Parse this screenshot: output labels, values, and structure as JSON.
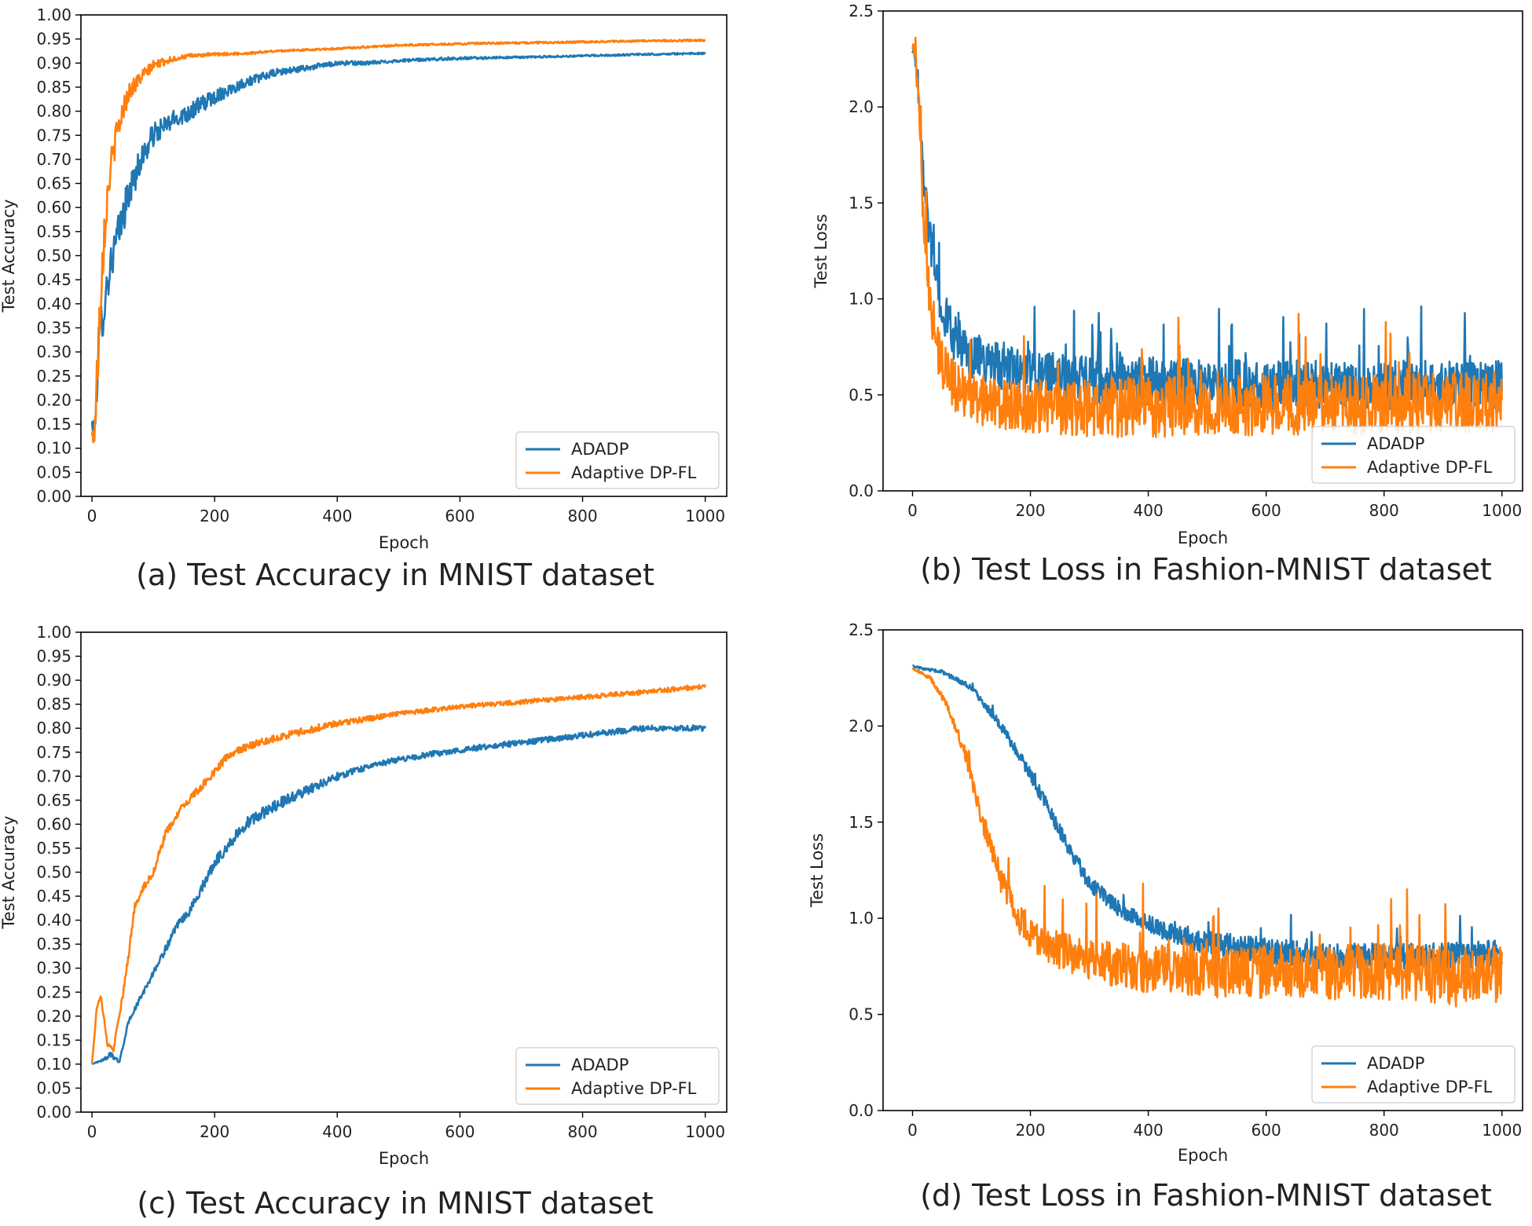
{
  "colors": {
    "series_0": "#1f77b4",
    "series_1": "#ff7f0e",
    "axis": "#000000",
    "legend_border": "#cccccc"
  },
  "chart_data": [
    {
      "id": "a",
      "type": "line",
      "caption": "(a) Test Accuracy in MNIST dataset",
      "xlabel": "Epoch",
      "ylabel": "Test Accuracy",
      "xlim": [
        -18,
        1035
      ],
      "ylim": [
        0,
        1.0
      ],
      "xticks": [
        0,
        200,
        400,
        600,
        800,
        1000
      ],
      "xtick_labels": [
        "0",
        "200",
        "400",
        "600",
        "800",
        "1000"
      ],
      "yticks": [
        0,
        0.05,
        0.1,
        0.15,
        0.2,
        0.25,
        0.3,
        0.35,
        0.4,
        0.45,
        0.5,
        0.55,
        0.6,
        0.65,
        0.7,
        0.75,
        0.8,
        0.85,
        0.9,
        0.95,
        1.0
      ],
      "ytick_labels": [
        "0.00",
        "0.05",
        "0.10",
        "0.15",
        "0.20",
        "0.25",
        "0.30",
        "0.35",
        "0.40",
        "0.45",
        "0.50",
        "0.55",
        "0.60",
        "0.65",
        "0.70",
        "0.75",
        "0.80",
        "0.85",
        "0.90",
        "0.95",
        "1.00"
      ],
      "legend_location": "lower-right",
      "series": [
        {
          "name": "ADADP",
          "color": "#1f77b4",
          "x": [
            0,
            5,
            10,
            15,
            20,
            30,
            40,
            50,
            60,
            80,
            100,
            130,
            160,
            200,
            250,
            300,
            350,
            400,
            450,
            500,
            600,
            700,
            800,
            900,
            1000
          ],
          "values": [
            0.15,
            0.13,
            0.3,
            0.36,
            0.4,
            0.48,
            0.53,
            0.58,
            0.63,
            0.7,
            0.75,
            0.78,
            0.8,
            0.83,
            0.86,
            0.88,
            0.89,
            0.9,
            0.9,
            0.905,
            0.91,
            0.912,
            0.915,
            0.918,
            0.92
          ],
          "noise": [
            0.02,
            0.02,
            0.05,
            0.05,
            0.05,
            0.04,
            0.04,
            0.04,
            0.035,
            0.03,
            0.025,
            0.02,
            0.02,
            0.015,
            0.01,
            0.008,
            0.006,
            0.005,
            0.004,
            0.003,
            0.003,
            0.002,
            0.002,
            0.002,
            0.002
          ]
        },
        {
          "name": "Adaptive DP-FL",
          "color": "#ff7f0e",
          "x": [
            0,
            5,
            10,
            15,
            20,
            25,
            30,
            40,
            50,
            60,
            80,
            100,
            130,
            160,
            200,
            250,
            300,
            400,
            500,
            600,
            700,
            800,
            900,
            1000
          ],
          "values": [
            0.12,
            0.15,
            0.3,
            0.45,
            0.55,
            0.62,
            0.68,
            0.75,
            0.8,
            0.84,
            0.87,
            0.895,
            0.908,
            0.915,
            0.918,
            0.92,
            0.925,
            0.93,
            0.937,
            0.94,
            0.942,
            0.944,
            0.946,
            0.947
          ],
          "noise": [
            0.02,
            0.05,
            0.06,
            0.06,
            0.05,
            0.04,
            0.035,
            0.03,
            0.025,
            0.02,
            0.015,
            0.01,
            0.006,
            0.004,
            0.003,
            0.003,
            0.002,
            0.002,
            0.002,
            0.002,
            0.002,
            0.002,
            0.002,
            0.002
          ]
        }
      ]
    },
    {
      "id": "b",
      "type": "line",
      "caption": "(b) Test Loss in Fashion-MNIST dataset",
      "xlabel": "Epoch",
      "ylabel": "Test Loss",
      "xlim": [
        -50,
        1035
      ],
      "ylim": [
        0,
        2.5
      ],
      "xticks": [
        0,
        200,
        400,
        600,
        800,
        1000
      ],
      "xtick_labels": [
        "0",
        "200",
        "400",
        "600",
        "800",
        "1000"
      ],
      "yticks": [
        0,
        0.5,
        1.0,
        1.5,
        2.0,
        2.5
      ],
      "ytick_labels": [
        "0.0",
        "0.5",
        "1.0",
        "1.5",
        "2.0",
        "2.5"
      ],
      "legend_location": "lower-right",
      "series": [
        {
          "name": "ADADP",
          "color": "#1f77b4",
          "x": [
            0,
            5,
            10,
            15,
            20,
            30,
            40,
            50,
            70,
            100,
            150,
            200,
            300,
            400,
            500,
            600,
            700,
            800,
            900,
            1000
          ],
          "values": [
            2.3,
            2.25,
            2.1,
            1.85,
            1.6,
            1.3,
            1.1,
            0.95,
            0.8,
            0.7,
            0.65,
            0.6,
            0.58,
            0.57,
            0.56,
            0.55,
            0.55,
            0.55,
            0.55,
            0.55
          ],
          "noise": [
            0.02,
            0.04,
            0.08,
            0.1,
            0.12,
            0.12,
            0.12,
            0.12,
            0.12,
            0.12,
            0.13,
            0.13,
            0.13,
            0.13,
            0.13,
            0.13,
            0.13,
            0.13,
            0.13,
            0.13
          ]
        },
        {
          "name": "Adaptive DP-FL",
          "color": "#ff7f0e",
          "x": [
            0,
            5,
            10,
            15,
            20,
            30,
            40,
            50,
            70,
            100,
            150,
            200,
            300,
            400,
            500,
            600,
            700,
            800,
            900,
            1000
          ],
          "values": [
            2.32,
            2.25,
            2.0,
            1.7,
            1.4,
            1.0,
            0.8,
            0.65,
            0.55,
            0.48,
            0.45,
            0.43,
            0.43,
            0.44,
            0.44,
            0.45,
            0.45,
            0.45,
            0.46,
            0.46
          ],
          "noise": [
            0.02,
            0.05,
            0.1,
            0.15,
            0.15,
            0.15,
            0.14,
            0.13,
            0.13,
            0.13,
            0.13,
            0.14,
            0.15,
            0.16,
            0.16,
            0.16,
            0.16,
            0.16,
            0.16,
            0.16
          ]
        }
      ]
    },
    {
      "id": "c",
      "type": "line",
      "caption": "(c) Test Accuracy in MNIST dataset",
      "xlabel": "Epoch",
      "ylabel": "Test Accuracy",
      "xlim": [
        -18,
        1035
      ],
      "ylim": [
        0,
        1.0
      ],
      "xticks": [
        0,
        200,
        400,
        600,
        800,
        1000
      ],
      "xtick_labels": [
        "0",
        "200",
        "400",
        "600",
        "800",
        "1000"
      ],
      "yticks": [
        0,
        0.05,
        0.1,
        0.15,
        0.2,
        0.25,
        0.3,
        0.35,
        0.4,
        0.45,
        0.5,
        0.55,
        0.6,
        0.65,
        0.7,
        0.75,
        0.8,
        0.85,
        0.9,
        0.95,
        1.0
      ],
      "ytick_labels": [
        "0.00",
        "0.05",
        "0.10",
        "0.15",
        "0.20",
        "0.25",
        "0.30",
        "0.35",
        "0.40",
        "0.45",
        "0.50",
        "0.55",
        "0.60",
        "0.65",
        "0.70",
        "0.75",
        "0.80",
        "0.85",
        "0.90",
        "0.95",
        "1.00"
      ],
      "legend_location": "lower-right",
      "series": [
        {
          "name": "ADADP",
          "color": "#1f77b4",
          "x": [
            0,
            20,
            30,
            45,
            60,
            80,
            100,
            120,
            140,
            160,
            180,
            200,
            250,
            300,
            350,
            400,
            450,
            500,
            600,
            700,
            800,
            900,
            1000
          ],
          "values": [
            0.1,
            0.11,
            0.12,
            0.105,
            0.19,
            0.24,
            0.29,
            0.34,
            0.39,
            0.42,
            0.47,
            0.52,
            0.6,
            0.64,
            0.67,
            0.7,
            0.72,
            0.735,
            0.755,
            0.77,
            0.785,
            0.8,
            0.8
          ],
          "noise": [
            0,
            0.003,
            0.005,
            0.003,
            0.005,
            0.006,
            0.006,
            0.008,
            0.008,
            0.01,
            0.01,
            0.012,
            0.012,
            0.012,
            0.01,
            0.008,
            0.006,
            0.006,
            0.006,
            0.006,
            0.006,
            0.006,
            0.006
          ]
        },
        {
          "name": "Adaptive DP-FL",
          "color": "#ff7f0e",
          "x": [
            0,
            8,
            15,
            25,
            35,
            50,
            60,
            70,
            80,
            100,
            120,
            150,
            180,
            200,
            220,
            250,
            300,
            350,
            400,
            450,
            500,
            600,
            700,
            800,
            900,
            1000
          ],
          "values": [
            0.1,
            0.22,
            0.24,
            0.14,
            0.13,
            0.24,
            0.33,
            0.43,
            0.46,
            0.5,
            0.58,
            0.64,
            0.68,
            0.71,
            0.74,
            0.76,
            0.78,
            0.795,
            0.81,
            0.82,
            0.83,
            0.845,
            0.855,
            0.865,
            0.875,
            0.888
          ],
          "noise": [
            0,
            0.004,
            0.005,
            0.005,
            0.005,
            0.006,
            0.008,
            0.008,
            0.008,
            0.008,
            0.008,
            0.008,
            0.008,
            0.008,
            0.008,
            0.008,
            0.008,
            0.008,
            0.007,
            0.006,
            0.005,
            0.005,
            0.005,
            0.005,
            0.005,
            0.005
          ]
        }
      ]
    },
    {
      "id": "d",
      "type": "line",
      "caption": "(d) Test Loss in Fashion-MNIST dataset",
      "xlabel": "Epoch",
      "ylabel": "Test Loss",
      "xlim": [
        -50,
        1035
      ],
      "ylim": [
        0,
        2.5
      ],
      "xticks": [
        0,
        200,
        400,
        600,
        800,
        1000
      ],
      "xtick_labels": [
        "0",
        "200",
        "400",
        "600",
        "800",
        "1000"
      ],
      "yticks": [
        0,
        0.5,
        1.0,
        1.5,
        2.0,
        2.5
      ],
      "ytick_labels": [
        "0.0",
        "0.5",
        "1.0",
        "1.5",
        "2.0",
        "2.5"
      ],
      "legend_location": "lower-right",
      "series": [
        {
          "name": "ADADP",
          "color": "#1f77b4",
          "x": [
            0,
            50,
            100,
            150,
            200,
            250,
            300,
            350,
            400,
            450,
            500,
            600,
            700,
            800,
            900,
            1000
          ],
          "values": [
            2.31,
            2.28,
            2.2,
            2.0,
            1.75,
            1.45,
            1.18,
            1.05,
            0.97,
            0.91,
            0.87,
            0.83,
            0.8,
            0.8,
            0.8,
            0.82
          ],
          "noise": [
            0.005,
            0.01,
            0.015,
            0.025,
            0.035,
            0.04,
            0.04,
            0.04,
            0.045,
            0.05,
            0.06,
            0.07,
            0.07,
            0.07,
            0.07,
            0.07
          ]
        },
        {
          "name": "Adaptive DP-FL",
          "color": "#ff7f0e",
          "x": [
            0,
            30,
            60,
            90,
            120,
            150,
            180,
            210,
            250,
            300,
            350,
            400,
            500,
            600,
            700,
            800,
            900,
            1000
          ],
          "values": [
            2.3,
            2.25,
            2.1,
            1.85,
            1.5,
            1.2,
            1.0,
            0.9,
            0.83,
            0.78,
            0.76,
            0.74,
            0.73,
            0.72,
            0.72,
            0.72,
            0.7,
            0.7
          ],
          "noise": [
            0.005,
            0.01,
            0.02,
            0.04,
            0.06,
            0.07,
            0.08,
            0.09,
            0.1,
            0.11,
            0.12,
            0.13,
            0.14,
            0.14,
            0.14,
            0.15,
            0.16,
            0.16
          ]
        }
      ]
    }
  ]
}
